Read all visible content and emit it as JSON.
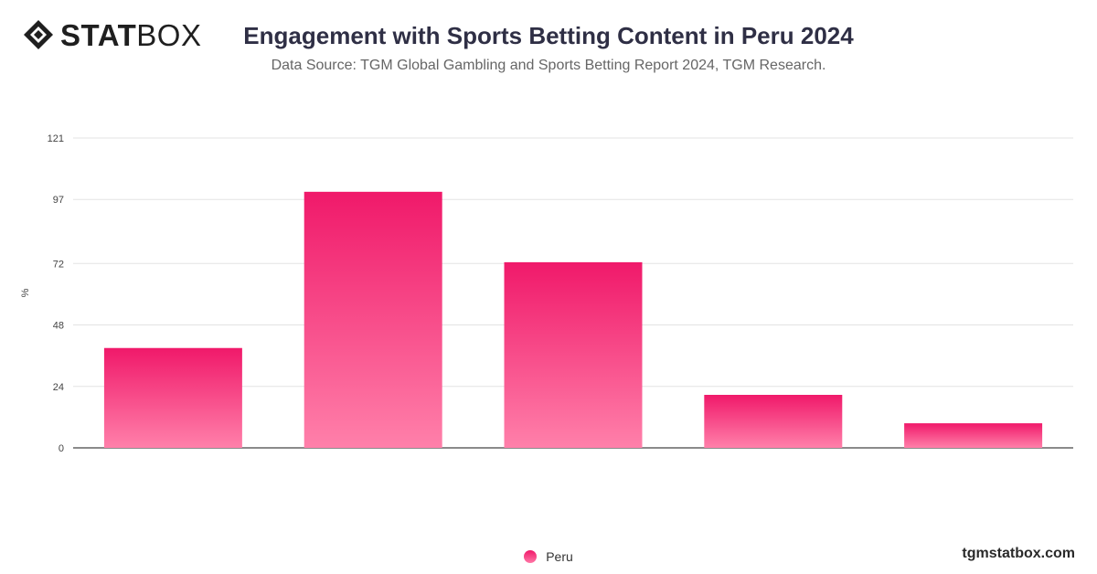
{
  "brand": {
    "logo_bold": "STAT",
    "logo_light": "BOX",
    "site": "tgmstatbox.com"
  },
  "chart_data": {
    "type": "bar",
    "title": "Engagement with Sports Betting Content in Peru 2024",
    "subtitle": "Data Source: TGM Global Gambling and Sports Betting Report 2024, TGM Research.",
    "ylabel": "%",
    "xlabel": "",
    "categories": [
      "",
      "",
      "",
      "",
      ""
    ],
    "series": [
      {
        "name": "Peru",
        "values": [
          39,
          100,
          72.5,
          20.7,
          9.6
        ]
      }
    ],
    "ylim": [
      0,
      121
    ],
    "yticks": [
      "0",
      "24",
      "48",
      "72",
      "97",
      "121"
    ],
    "legend": "bottom-center",
    "grid": true,
    "colors": {
      "bar_top": "#f0196a",
      "bar_bottom": "#ff80aa",
      "grid": "#e3e3e3",
      "axis": "#444444"
    }
  }
}
